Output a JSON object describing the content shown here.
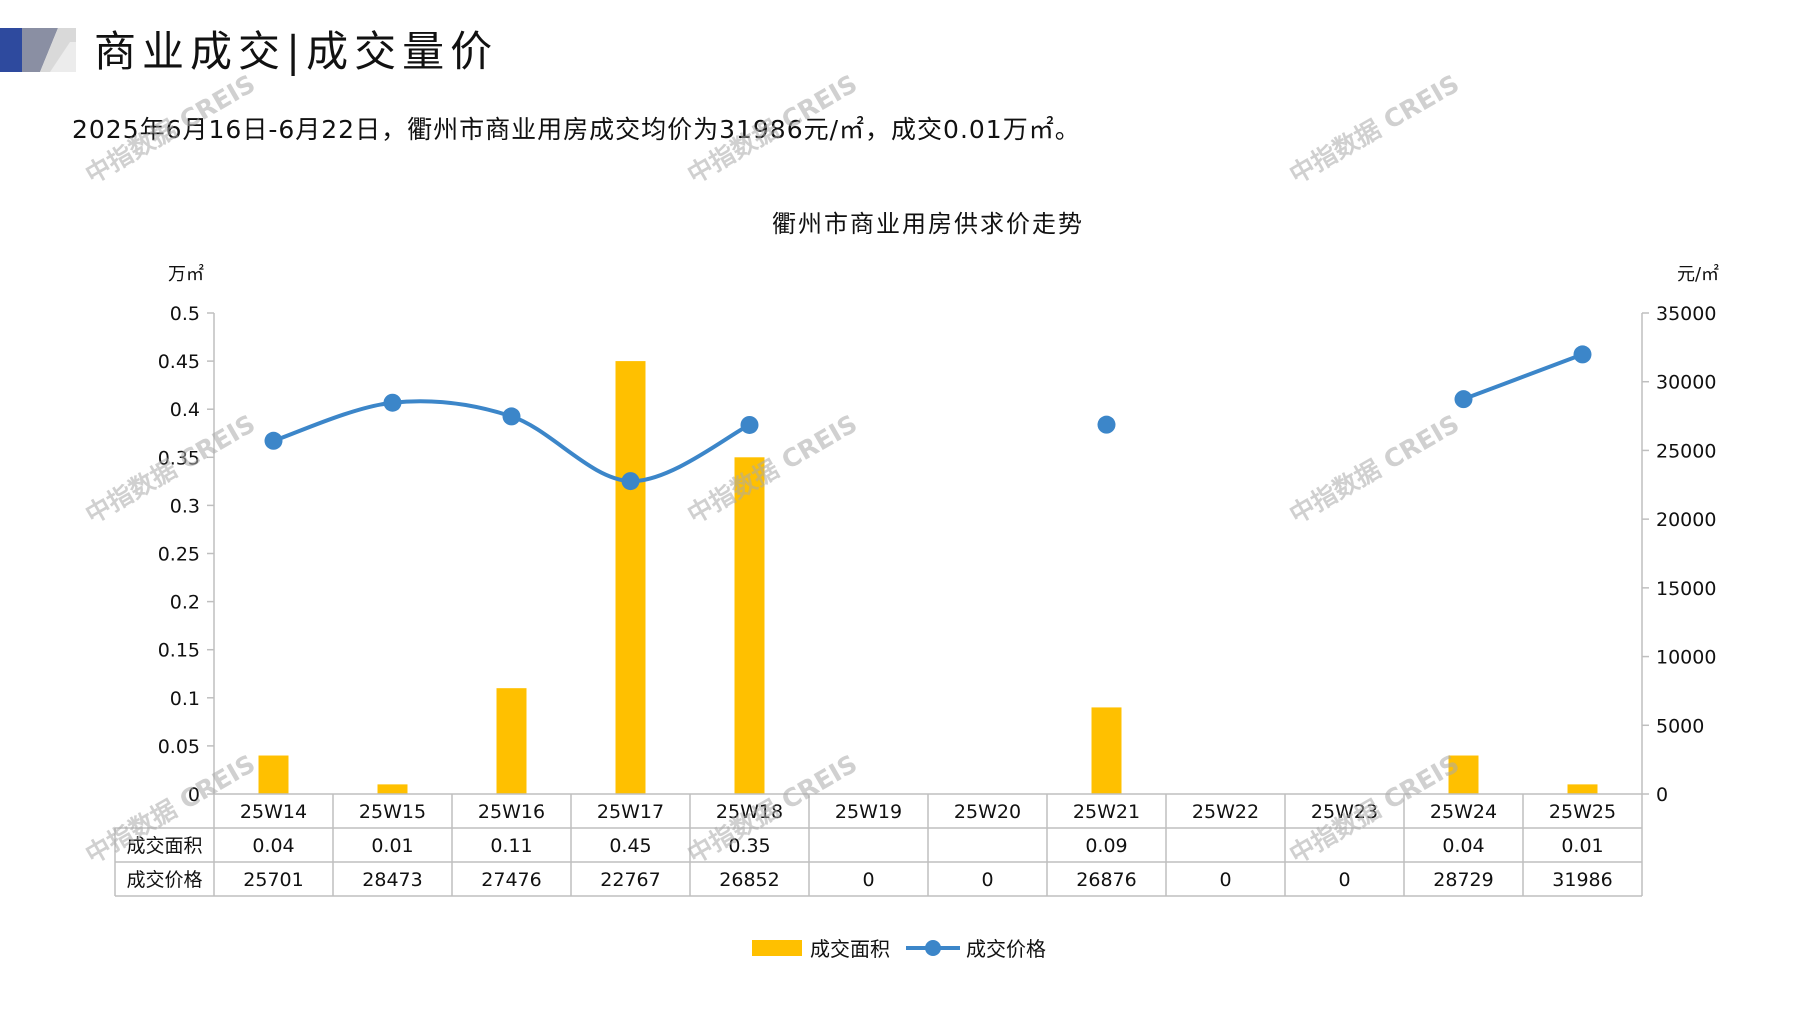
{
  "header": {
    "title": "商业成交|成交量价"
  },
  "summary": "2025年6月16日-6月22日，衢州市商业用房成交均价为31986元/㎡，成交0.01万㎡。",
  "watermark": "中指数据 CREIS",
  "colors": {
    "bar": "#FFC000",
    "line": "#3C86C9",
    "grid": "#BFBFBF",
    "logo_dark": "#2E4A9E",
    "logo_light": "#D9D9D9"
  },
  "chart_data": {
    "type": "bar+line",
    "title": "衢州市商业用房供求价走势",
    "y_left_unit": "万㎡",
    "y_right_unit": "元/㎡",
    "y_left_ticks": [
      "0.5",
      "0.45",
      "0.4",
      "0.35",
      "0.3",
      "0.25",
      "0.2",
      "0.15",
      "0.1",
      "0.05",
      "0"
    ],
    "y_right_ticks": [
      "35000",
      "30000",
      "25000",
      "20000",
      "15000",
      "10000",
      "5000",
      "0"
    ],
    "ylim_left": [
      0,
      0.5
    ],
    "ylim_right": [
      0,
      35000
    ],
    "categories": [
      "25W14",
      "25W15",
      "25W16",
      "25W17",
      "25W18",
      "25W19",
      "25W20",
      "25W21",
      "25W22",
      "25W23",
      "25W24",
      "25W25"
    ],
    "series": [
      {
        "name": "成交面积",
        "type": "bar",
        "axis": "left",
        "values": [
          0.04,
          0.01,
          0.11,
          0.45,
          0.35,
          null,
          null,
          0.09,
          null,
          null,
          0.04,
          0.01
        ],
        "labels": [
          "0.04",
          "0.01",
          "0.11",
          "0.45",
          "0.35",
          "",
          "",
          "0.09",
          "",
          "",
          "0.04",
          "0.01"
        ]
      },
      {
        "name": "成交价格",
        "type": "line",
        "axis": "right",
        "values": [
          25701,
          28473,
          27476,
          22767,
          26852,
          0,
          0,
          26876,
          0,
          0,
          28729,
          31986
        ],
        "labels": [
          "25701",
          "28473",
          "27476",
          "22767",
          "26852",
          "0",
          "0",
          "26876",
          "0",
          "0",
          "28729",
          "31986"
        ]
      }
    ],
    "legend": "bottom"
  }
}
